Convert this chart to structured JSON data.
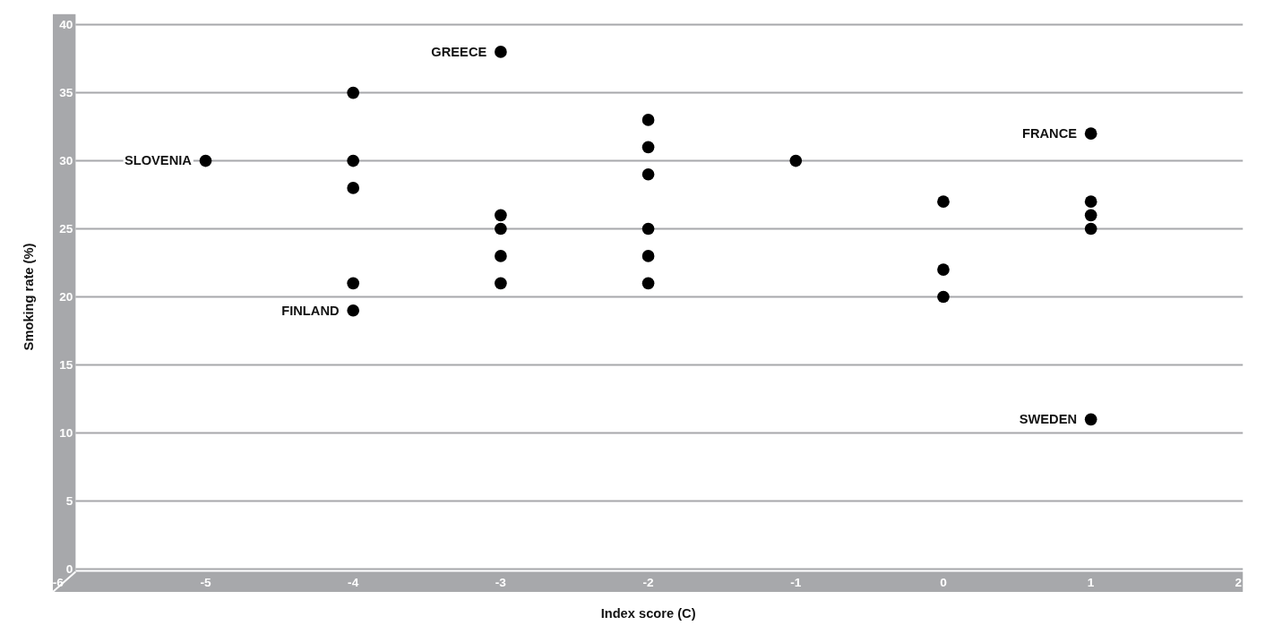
{
  "chart_data": {
    "type": "scatter",
    "xlabel": "Index score (C)",
    "ylabel": "Smoking rate (%)",
    "xlim": [
      -6,
      2
    ],
    "xticks": [
      -6,
      -5,
      -4,
      -3,
      -2,
      -1,
      0,
      1,
      2
    ],
    "ylim": [
      0,
      40
    ],
    "yticks": [
      0,
      5,
      10,
      15,
      20,
      25,
      30,
      35,
      40
    ],
    "grid": "y",
    "marker": "circle",
    "series": [
      {
        "color": "#000000",
        "x": [
          -5,
          -4,
          -4,
          -4,
          -4,
          -4,
          -3,
          -3,
          -3,
          -3,
          -3,
          -2,
          -2,
          -2,
          -2,
          -2,
          -2,
          -1,
          0,
          0,
          0,
          1,
          1,
          1,
          1,
          1
        ],
        "values": [
          30,
          35,
          30,
          28,
          21,
          19,
          38,
          26,
          25,
          23,
          21,
          33,
          31,
          29,
          25,
          23,
          21,
          30,
          27,
          22,
          20,
          32,
          27,
          26,
          25,
          11
        ]
      }
    ],
    "annotations": [
      {
        "text": "SLOVENIA",
        "x": -5,
        "y": 30
      },
      {
        "text": "FINLAND",
        "x": -4,
        "y": 19
      },
      {
        "text": "GREECE",
        "x": -3,
        "y": 38
      },
      {
        "text": "FRANCE",
        "x": 1,
        "y": 32
      },
      {
        "text": "SWEDEN",
        "x": 1,
        "y": 11
      }
    ]
  }
}
